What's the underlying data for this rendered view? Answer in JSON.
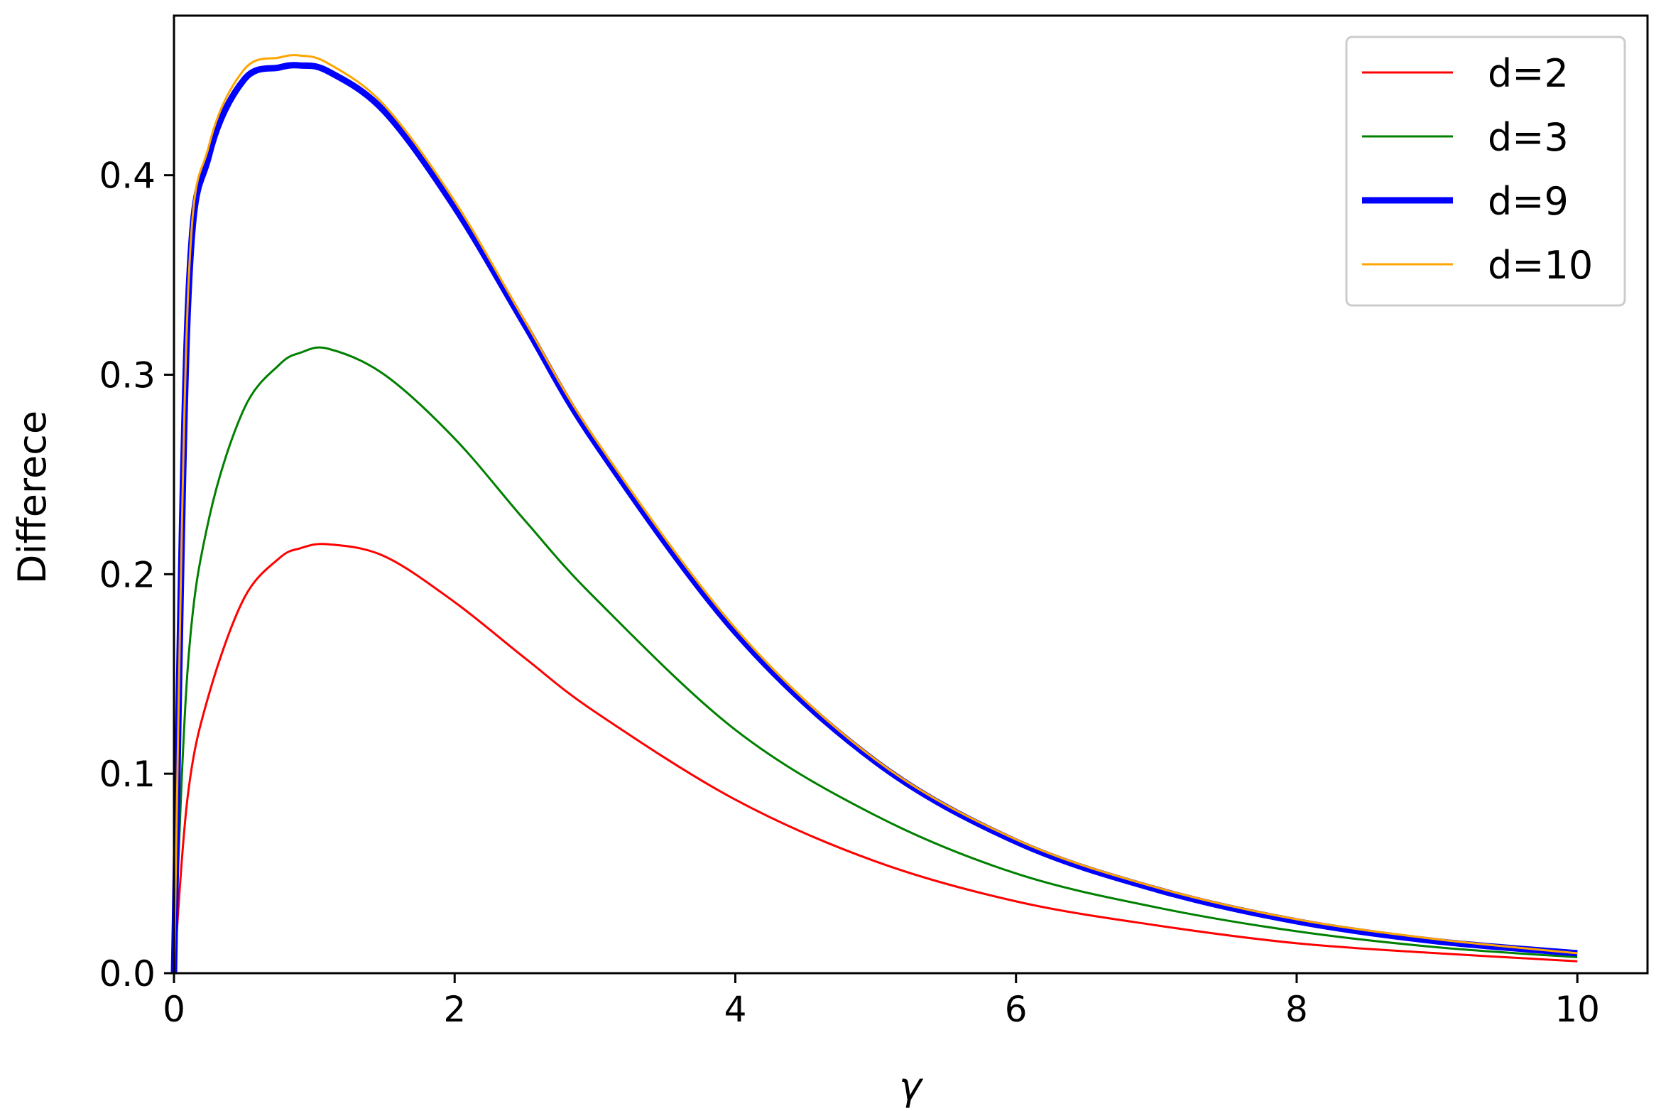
{
  "chart_data": {
    "type": "line",
    "title": "",
    "xlabel": "γ",
    "ylabel": "Differece",
    "xlim": [
      0,
      10.5
    ],
    "ylim": [
      0,
      0.48
    ],
    "xticks": [
      0,
      2,
      4,
      6,
      8,
      10
    ],
    "xtick_labels": [
      "0",
      "2",
      "4",
      "6",
      "8",
      "10"
    ],
    "yticks": [
      0.0,
      0.1,
      0.2,
      0.3,
      0.4
    ],
    "ytick_labels": [
      "0.0",
      "0.1",
      "0.2",
      "0.3",
      "0.4"
    ],
    "grid": false,
    "legend_position": "top-right",
    "x": [
      0,
      0.1,
      0.25,
      0.5,
      0.75,
      0.9,
      1.1,
      1.5,
      2,
      2.5,
      3,
      4,
      5,
      6,
      7,
      8,
      9,
      10
    ],
    "series": [
      {
        "name": "d=2",
        "color": "#ff0000",
        "line_width": 3,
        "values": [
          0,
          0.09,
          0.14,
          0.188,
          0.208,
          0.213,
          0.215,
          0.209,
          0.186,
          0.158,
          0.131,
          0.087,
          0.056,
          0.036,
          0.024,
          0.015,
          0.01,
          0.006
        ]
      },
      {
        "name": "d=3",
        "color": "#008000",
        "line_width": 3,
        "values": [
          0,
          0.155,
          0.228,
          0.283,
          0.305,
          0.311,
          0.313,
          0.3,
          0.268,
          0.227,
          0.188,
          0.122,
          0.079,
          0.05,
          0.033,
          0.021,
          0.013,
          0.008
        ]
      },
      {
        "name": "d=9",
        "color": "#0000ff",
        "line_width": 9,
        "values": [
          0,
          0.335,
          0.41,
          0.448,
          0.454,
          0.455,
          0.452,
          0.432,
          0.384,
          0.325,
          0.266,
          0.171,
          0.106,
          0.066,
          0.042,
          0.026,
          0.016,
          0.01
        ]
      },
      {
        "name": "d=10",
        "color": "#ffa500",
        "line_width": 3,
        "values": [
          0,
          0.34,
          0.415,
          0.453,
          0.459,
          0.46,
          0.456,
          0.435,
          0.387,
          0.327,
          0.268,
          0.173,
          0.107,
          0.067,
          0.043,
          0.027,
          0.017,
          0.01
        ]
      }
    ]
  }
}
